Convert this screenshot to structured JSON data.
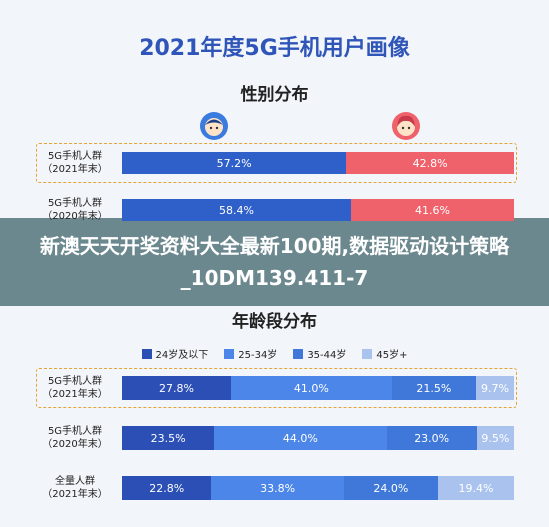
{
  "chart_data": [
    {
      "type": "bar",
      "stacked": true,
      "orientation": "horizontal",
      "title": "2021年度5G手机用户画像",
      "subtitle": "性别分布",
      "categories": [
        "5G手机人群（2021年末）",
        "5G手机人群（2020年末）"
      ],
      "category_lines": [
        [
          "5G手机人群",
          "（2021年末）"
        ],
        [
          "5G手机人群",
          "（2020年末）"
        ]
      ],
      "series": [
        {
          "values": [
            57.2,
            58.4
          ],
          "labels": [
            "57.2%",
            "58.4%"
          ],
          "color": "#2f5fc9"
        },
        {
          "values": [
            42.8,
            41.6
          ],
          "labels": [
            "42.8%",
            "41.6%"
          ],
          "color": "#f0626b"
        }
      ],
      "xlim": [
        0,
        100
      ]
    },
    {
      "type": "bar",
      "stacked": true,
      "orientation": "horizontal",
      "subtitle": "年龄段分布",
      "categories": [
        "5G手机人群（2021年末）",
        "5G手机人群（2020年末）",
        "全量人群（2021年末）"
      ],
      "category_lines": [
        [
          "5G手机人群",
          "（2021年末）"
        ],
        [
          "5G手机人群",
          "（2020年末）"
        ],
        [
          "全量人群",
          "（2021年末）"
        ]
      ],
      "series": [
        {
          "name": "24岁及以下",
          "values": [
            27.8,
            23.5,
            22.8
          ],
          "labels": [
            "27.8%",
            "23.5%",
            "22.8%"
          ],
          "color": "#2b4fb5"
        },
        {
          "name": "25-34岁",
          "values": [
            41.0,
            44.0,
            33.8
          ],
          "labels": [
            "41.0%",
            "44.0%",
            "33.8%"
          ],
          "color": "#4b86e8"
        },
        {
          "name": "35-44岁",
          "values": [
            21.5,
            23.0,
            24.0
          ],
          "labels": [
            "21.5%",
            "23.0%",
            "24.0%"
          ],
          "color": "#3f78d9"
        },
        {
          "name": "45岁+",
          "values": [
            9.7,
            9.5,
            19.4
          ],
          "labels": [
            "9.7%",
            "9.5%",
            "19.4%"
          ],
          "color": "#a9c3ee"
        }
      ],
      "legend_position": "top",
      "xlim": [
        0,
        100
      ]
    }
  ],
  "overlay": {
    "text": "新澳天天开奖资料大全最新100期,数据驱动设计策略_10DM139.411-7"
  },
  "colors": {
    "title": "#2f55b8",
    "dash": "#e7a436",
    "male_avatar": "#3a7be0",
    "female_avatar": "#f0626b"
  }
}
